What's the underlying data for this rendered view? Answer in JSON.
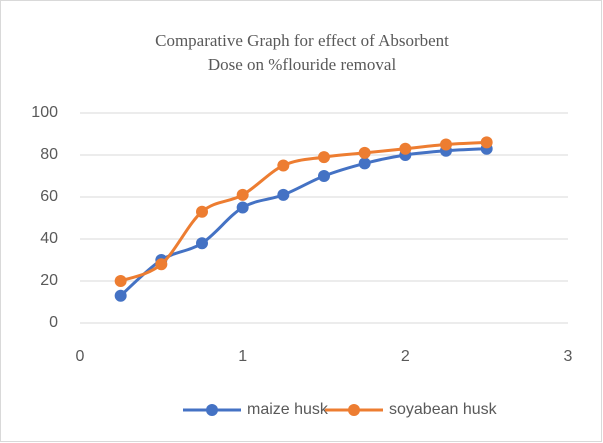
{
  "chart_data": {
    "type": "line",
    "title": [
      "Comparative Graph for effect of Absorbent",
      "Dose on %flouride removal"
    ],
    "x": [
      0.25,
      0.5,
      0.75,
      1,
      1.25,
      1.5,
      1.75,
      2,
      2.25,
      2.5
    ],
    "series": [
      {
        "name": "maize husk",
        "color": "#4472c4",
        "values": [
          13,
          30,
          38,
          55,
          61,
          70,
          76,
          80,
          82,
          83
        ]
      },
      {
        "name": "soyabean husk",
        "color": "#ed7d31",
        "values": [
          20,
          28,
          53,
          61,
          75,
          79,
          81,
          83,
          85,
          86
        ]
      }
    ],
    "xlim": [
      0,
      3
    ],
    "xticks": [
      0,
      1,
      2,
      3
    ],
    "ylim": [
      0,
      100
    ],
    "yticks": [
      0,
      20,
      40,
      60,
      80,
      100
    ],
    "grid": true,
    "smooth": true,
    "legend": "bottom"
  }
}
